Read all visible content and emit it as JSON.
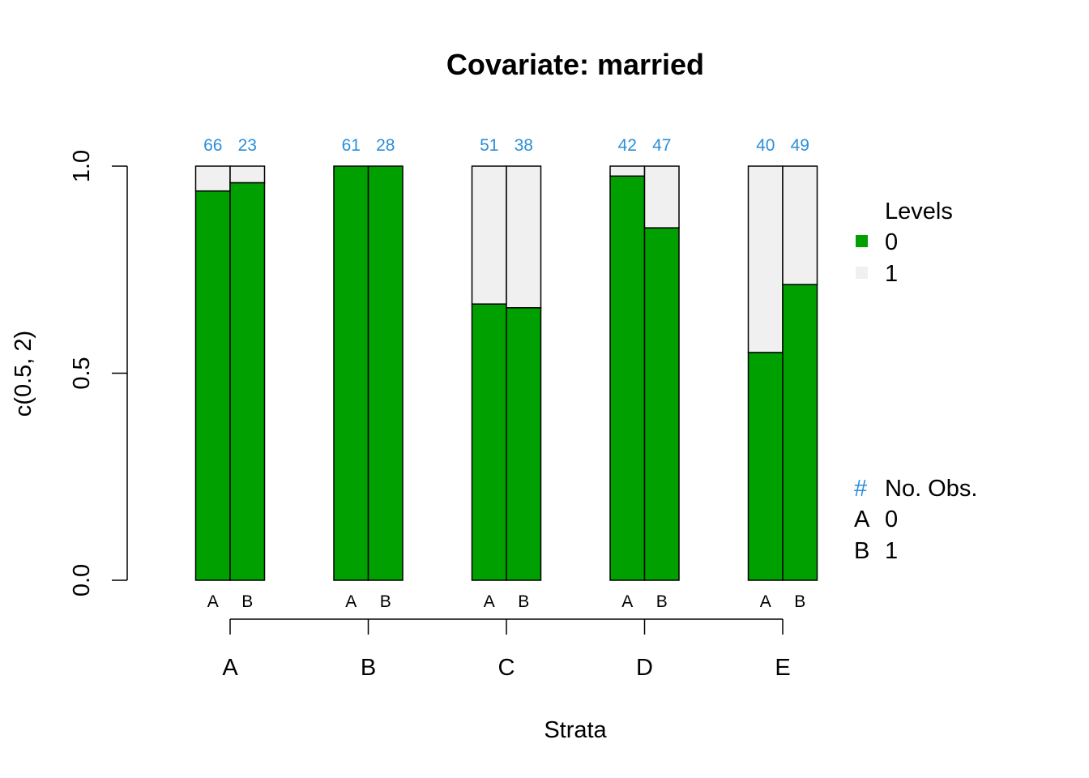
{
  "chart_data": {
    "type": "bar",
    "title": "Covariate: married",
    "xlabel": "Strata",
    "ylabel": "c(0.5, 2)",
    "ylim": [
      0,
      1
    ],
    "y_ticks": [
      "0.0",
      "0.5",
      "1.0"
    ],
    "y_tick_values": [
      0,
      0.5,
      1
    ],
    "stacked": true,
    "categories": [
      "A",
      "B",
      "C",
      "D",
      "E"
    ],
    "sub_categories": [
      "A",
      "B"
    ],
    "series": [
      {
        "name": "0",
        "color": "#00a000",
        "values": [
          [
            0.94,
            0.96
          ],
          [
            1.0,
            1.0
          ],
          [
            0.667,
            0.658
          ],
          [
            0.976,
            0.851
          ],
          [
            0.55,
            0.714
          ]
        ]
      },
      {
        "name": "1",
        "color": "#f0f0f0",
        "values": [
          [
            0.06,
            0.04
          ],
          [
            0.0,
            0.0
          ],
          [
            0.333,
            0.342
          ],
          [
            0.024,
            0.149
          ],
          [
            0.45,
            0.286
          ]
        ]
      }
    ],
    "counts": [
      [
        66,
        23
      ],
      [
        61,
        28
      ],
      [
        51,
        38
      ],
      [
        42,
        47
      ],
      [
        40,
        49
      ]
    ],
    "grid": false,
    "legend_placement": "right"
  },
  "legend": {
    "levels_title": "Levels",
    "levels": [
      {
        "label": "0",
        "color": "#00a000"
      },
      {
        "label": "1",
        "color": "#f0f0f0"
      }
    ],
    "obs_hash": "#",
    "obs_title": "No. Obs.",
    "obs_items": [
      {
        "key": "A",
        "label": "0"
      },
      {
        "key": "B",
        "label": "1"
      }
    ]
  },
  "colors": {
    "count_text": "#2b8fd9",
    "level_0": "#00a000",
    "level_1": "#f0f0f0"
  }
}
